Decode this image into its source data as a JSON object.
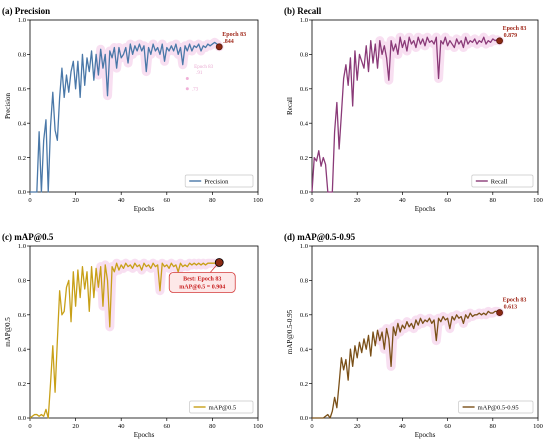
{
  "chart_data": [
    {
      "type": "line",
      "title": "(a) Precision",
      "xlabel": "Epochs",
      "ylabel": "Precision",
      "xlim": [
        0,
        100
      ],
      "ylim": [
        0,
        1.0
      ],
      "xticks": [
        "0",
        "20",
        "40",
        "60",
        "80",
        "100"
      ],
      "yticks": [
        "0.0",
        "0.2",
        "0.4",
        "0.6",
        "0.8",
        "1.0"
      ],
      "color": "#4a78a8",
      "series": [
        {
          "name": "Precision",
          "x": [
            0,
            1,
            2,
            3,
            4,
            5,
            6,
            7,
            8,
            9,
            10,
            11,
            12,
            13,
            14,
            15,
            16,
            17,
            18,
            19,
            20,
            21,
            22,
            23,
            24,
            25,
            26,
            27,
            28,
            29,
            30,
            31,
            32,
            33,
            34,
            35,
            36,
            37,
            38,
            39,
            40,
            41,
            42,
            43,
            44,
            45,
            46,
            47,
            48,
            49,
            50,
            51,
            52,
            53,
            54,
            55,
            56,
            57,
            58,
            59,
            60,
            61,
            62,
            63,
            64,
            65,
            66,
            67,
            68,
            69,
            70,
            71,
            72,
            73,
            74,
            75,
            76,
            77,
            78,
            79,
            80,
            81,
            82,
            83
          ],
          "values": [
            0.0,
            0.0,
            0.0,
            0.0,
            0.35,
            0.0,
            0.3,
            0.42,
            0.0,
            0.38,
            0.58,
            0.36,
            0.3,
            0.55,
            0.72,
            0.55,
            0.68,
            0.58,
            0.7,
            0.76,
            0.6,
            0.76,
            0.55,
            0.8,
            0.62,
            0.78,
            0.7,
            0.82,
            0.65,
            0.8,
            0.68,
            0.83,
            0.72,
            0.8,
            0.56,
            0.82,
            0.78,
            0.84,
            0.72,
            0.84,
            0.78,
            0.8,
            0.84,
            0.75,
            0.86,
            0.8,
            0.85,
            0.82,
            0.86,
            0.82,
            0.85,
            0.7,
            0.84,
            0.8,
            0.86,
            0.82,
            0.84,
            0.8,
            0.86,
            0.76,
            0.84,
            0.82,
            0.85,
            0.82,
            0.86,
            0.8,
            0.84,
            0.74,
            0.85,
            0.82,
            0.86,
            0.82,
            0.85,
            0.84,
            0.86,
            0.82,
            0.85,
            0.84,
            0.86,
            0.85,
            0.86,
            0.87,
            0.86,
            0.844
          ]
        }
      ],
      "legend": "lower-right",
      "annotation": {
        "lines": [
          "Epoch 83",
          ".844"
        ],
        "x": 83,
        "y": 0.844
      },
      "faint_labels": [
        "Epoch 83",
        ".91",
        ".73"
      ]
    },
    {
      "type": "line",
      "title": "(b) Recall",
      "xlabel": "Epochs",
      "ylabel": "Recall",
      "xlim": [
        0,
        100
      ],
      "ylim": [
        0,
        1.0
      ],
      "xticks": [
        "0",
        "20",
        "40",
        "60",
        "80",
        "100"
      ],
      "yticks": [
        "0.0",
        "0.2",
        "0.4",
        "0.6",
        "0.8",
        "1.0"
      ],
      "color": "#8a3a78",
      "series": [
        {
          "name": "Recall",
          "x": [
            0,
            1,
            2,
            3,
            4,
            5,
            6,
            7,
            8,
            9,
            10,
            11,
            12,
            13,
            14,
            15,
            16,
            17,
            18,
            19,
            20,
            21,
            22,
            23,
            24,
            25,
            26,
            27,
            28,
            29,
            30,
            31,
            32,
            33,
            34,
            35,
            36,
            37,
            38,
            39,
            40,
            41,
            42,
            43,
            44,
            45,
            46,
            47,
            48,
            49,
            50,
            51,
            52,
            53,
            54,
            55,
            56,
            57,
            58,
            59,
            60,
            61,
            62,
            63,
            64,
            65,
            66,
            67,
            68,
            69,
            70,
            71,
            72,
            73,
            74,
            75,
            76,
            77,
            78,
            79,
            80,
            81,
            82,
            83
          ],
          "values": [
            0.0,
            0.2,
            0.18,
            0.24,
            0.15,
            0.2,
            0.16,
            0.0,
            0.0,
            0.0,
            0.35,
            0.52,
            0.25,
            0.45,
            0.66,
            0.74,
            0.62,
            0.78,
            0.5,
            0.82,
            0.65,
            0.8,
            0.76,
            0.72,
            0.85,
            0.7,
            0.88,
            0.75,
            0.86,
            0.72,
            0.88,
            0.8,
            0.85,
            0.78,
            0.65,
            0.88,
            0.82,
            0.86,
            0.8,
            0.9,
            0.84,
            0.88,
            0.82,
            0.9,
            0.86,
            0.88,
            0.84,
            0.9,
            0.86,
            0.89,
            0.85,
            0.9,
            0.87,
            0.88,
            0.86,
            0.9,
            0.66,
            0.88,
            0.86,
            0.9,
            0.85,
            0.88,
            0.86,
            0.84,
            0.89,
            0.86,
            0.88,
            0.84,
            0.9,
            0.86,
            0.88,
            0.87,
            0.89,
            0.86,
            0.88,
            0.87,
            0.9,
            0.86,
            0.88,
            0.87,
            0.89,
            0.88,
            0.885,
            0.879
          ]
        }
      ],
      "legend": "lower-right",
      "annotation": {
        "lines": [
          "Epoch 83",
          "0.879"
        ],
        "x": 83,
        "y": 0.879
      }
    },
    {
      "type": "line",
      "title": "(c) mAP@0.5",
      "xlabel": "Epochs",
      "ylabel": "mAP@0.5",
      "xlim": [
        0,
        100
      ],
      "ylim": [
        0,
        1.0
      ],
      "xticks": [
        "0",
        "20",
        "40",
        "60",
        "80",
        "100"
      ],
      "yticks": [
        "0.0",
        "0.2",
        "0.4",
        "0.6",
        "0.8",
        "1.0"
      ],
      "color": "#c8a018",
      "series": [
        {
          "name": "mAP@0.5",
          "x": [
            0,
            1,
            2,
            3,
            4,
            5,
            6,
            7,
            8,
            9,
            10,
            11,
            12,
            13,
            14,
            15,
            16,
            17,
            18,
            19,
            20,
            21,
            22,
            23,
            24,
            25,
            26,
            27,
            28,
            29,
            30,
            31,
            32,
            33,
            34,
            35,
            36,
            37,
            38,
            39,
            40,
            41,
            42,
            43,
            44,
            45,
            46,
            47,
            48,
            49,
            50,
            51,
            52,
            53,
            54,
            55,
            56,
            57,
            58,
            59,
            60,
            61,
            62,
            63,
            64,
            65,
            66,
            67,
            68,
            69,
            70,
            71,
            72,
            73,
            74,
            75,
            76,
            77,
            78,
            79,
            80,
            81,
            82,
            83
          ],
          "values": [
            0.0,
            0.01,
            0.02,
            0.02,
            0.01,
            0.02,
            0.01,
            0.05,
            0.0,
            0.2,
            0.42,
            0.15,
            0.45,
            0.74,
            0.6,
            0.62,
            0.76,
            0.8,
            0.56,
            0.85,
            0.65,
            0.86,
            0.7,
            0.88,
            0.75,
            0.85,
            0.62,
            0.88,
            0.7,
            0.87,
            0.76,
            0.88,
            0.65,
            0.89,
            0.8,
            0.53,
            0.88,
            0.85,
            0.9,
            0.86,
            0.89,
            0.87,
            0.9,
            0.88,
            0.89,
            0.87,
            0.9,
            0.88,
            0.89,
            0.86,
            0.9,
            0.88,
            0.89,
            0.87,
            0.9,
            0.88,
            0.89,
            0.74,
            0.9,
            0.88,
            0.89,
            0.87,
            0.9,
            0.88,
            0.89,
            0.85,
            0.9,
            0.88,
            0.89,
            0.88,
            0.9,
            0.89,
            0.9,
            0.89,
            0.9,
            0.89,
            0.9,
            0.89,
            0.9,
            0.9,
            0.9,
            0.9,
            0.9,
            0.904
          ]
        }
      ],
      "legend": "lower-right",
      "annotation": {
        "lines": [
          "Best: Epoch 83",
          "mAP@0.5 = 0.904"
        ],
        "x": 83,
        "y": 0.904
      }
    },
    {
      "type": "line",
      "title": "(d) mAP@0.5-0.95",
      "xlabel": "Epochs",
      "ylabel": "mAP@0.5-0.95",
      "xlim": [
        0,
        100
      ],
      "ylim": [
        0,
        1.0
      ],
      "xticks": [
        "0",
        "20",
        "40",
        "60",
        "80",
        "100"
      ],
      "yticks": [
        "0.0",
        "0.2",
        "0.4",
        "0.6",
        "0.8",
        "1.0"
      ],
      "color": "#7a5018",
      "series": [
        {
          "name": "mAP@0.5-0.95",
          "x": [
            0,
            1,
            2,
            3,
            4,
            5,
            6,
            7,
            8,
            9,
            10,
            11,
            12,
            13,
            14,
            15,
            16,
            17,
            18,
            19,
            20,
            21,
            22,
            23,
            24,
            25,
            26,
            27,
            28,
            29,
            30,
            31,
            32,
            33,
            34,
            35,
            36,
            37,
            38,
            39,
            40,
            41,
            42,
            43,
            44,
            45,
            46,
            47,
            48,
            49,
            50,
            51,
            52,
            53,
            54,
            55,
            56,
            57,
            58,
            59,
            60,
            61,
            62,
            63,
            64,
            65,
            66,
            67,
            68,
            69,
            70,
            71,
            72,
            73,
            74,
            75,
            76,
            77,
            78,
            79,
            80,
            81,
            82,
            83
          ],
          "values": [
            0.0,
            0.0,
            0.0,
            0.0,
            0.0,
            0.0,
            0.01,
            0.02,
            0.0,
            0.04,
            0.12,
            0.06,
            0.2,
            0.35,
            0.28,
            0.34,
            0.22,
            0.4,
            0.3,
            0.42,
            0.35,
            0.44,
            0.38,
            0.46,
            0.4,
            0.48,
            0.36,
            0.5,
            0.42,
            0.51,
            0.45,
            0.5,
            0.4,
            0.52,
            0.46,
            0.3,
            0.53,
            0.48,
            0.55,
            0.5,
            0.54,
            0.52,
            0.56,
            0.53,
            0.55,
            0.52,
            0.57,
            0.54,
            0.58,
            0.55,
            0.57,
            0.56,
            0.58,
            0.55,
            0.57,
            0.45,
            0.58,
            0.56,
            0.59,
            0.57,
            0.58,
            0.52,
            0.59,
            0.57,
            0.6,
            0.58,
            0.59,
            0.55,
            0.6,
            0.58,
            0.61,
            0.59,
            0.6,
            0.6,
            0.61,
            0.6,
            0.61,
            0.6,
            0.62,
            0.61,
            0.61,
            0.62,
            0.62,
            0.613
          ]
        }
      ],
      "legend": "lower-right",
      "annotation": {
        "lines": [
          "Epoch 83",
          "0.613"
        ],
        "x": 83,
        "y": 0.613
      }
    }
  ]
}
